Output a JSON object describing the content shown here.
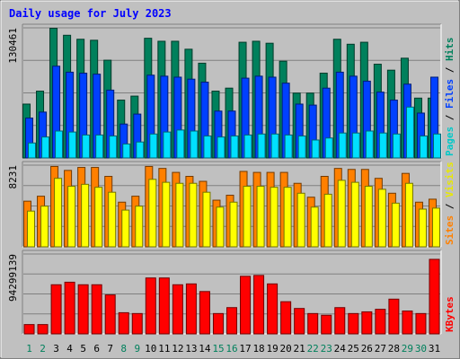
{
  "chart_data": {
    "type": "bar",
    "title": "Daily usage for July 2023",
    "days": [
      "1",
      "2",
      "3",
      "4",
      "5",
      "6",
      "7",
      "8",
      "9",
      "10",
      "11",
      "12",
      "13",
      "14",
      "15",
      "16",
      "17",
      "18",
      "19",
      "20",
      "21",
      "22",
      "23",
      "24",
      "25",
      "26",
      "27",
      "28",
      "29",
      "30",
      "31"
    ],
    "weekend_days": [
      "1",
      "2",
      "8",
      "9",
      "15",
      "16",
      "22",
      "23",
      "29",
      "30"
    ],
    "panels": [
      {
        "name": "hits-files-pages",
        "ymax_label": "130461",
        "ymax": 130461,
        "series": [
          {
            "name": "Hits",
            "color": "#00805c",
            "values": [
              54000,
              67000,
              130000,
              123000,
              119000,
              118000,
              98000,
              58000,
              62000,
              120000,
              117000,
              117000,
              109000,
              95000,
              67000,
              70000,
              116000,
              117000,
              115000,
              97000,
              65000,
              65000,
              85000,
              119000,
              114000,
              116000,
              94000,
              88000,
              100000,
              60000,
              60000
            ]
          },
          {
            "name": "Files",
            "color": "#0040ff",
            "values": [
              40000,
              46000,
              92000,
              86000,
              85000,
              84000,
              68000,
              34000,
              44000,
              83000,
              82000,
              81000,
              79000,
              76000,
              47000,
              47000,
              80000,
              82000,
              81000,
              75000,
              54000,
              53000,
              70000,
              86000,
              82000,
              77000,
              66000,
              58000,
              74000,
              45000,
              81000
            ]
          },
          {
            "name": "Pages",
            "color": "#00e0ff",
            "values": [
              15000,
              21000,
              27000,
              26000,
              23000,
              23000,
              22000,
              14000,
              16000,
              24000,
              26000,
              28000,
              27000,
              22000,
              21000,
              22000,
              23000,
              24000,
              24000,
              23000,
              22000,
              18000,
              20000,
              25000,
              25000,
              27000,
              25000,
              24000,
              51000,
              22000,
              24000
            ]
          }
        ],
        "side_labels": [
          {
            "text": "Pages",
            "color": "#00c8c8"
          },
          {
            "text": "/",
            "color": "#000000"
          },
          {
            "text": "Files",
            "color": "#0040ff"
          },
          {
            "text": "/",
            "color": "#000000"
          },
          {
            "text": "Hits",
            "color": "#00805c"
          }
        ]
      },
      {
        "name": "visits-sites",
        "ymax_label": "8231",
        "ymax": 8231,
        "series": [
          {
            "name": "Sites",
            "color": "#ff8000",
            "values": [
              4600,
              5100,
              8100,
              7700,
              8000,
              8000,
              7100,
              4500,
              5100,
              8100,
              7900,
              7500,
              7100,
              6600,
              4700,
              5200,
              7600,
              7500,
              7500,
              7500,
              6400,
              5000,
              7100,
              7900,
              7800,
              7800,
              6900,
              5400,
              7400,
              4500,
              4800
            ]
          },
          {
            "name": "Visits",
            "color": "#ffff00",
            "values": [
              3600,
              4100,
              6900,
              6100,
              6300,
              6000,
              5500,
              3700,
              4100,
              6800,
              6500,
              6400,
              6400,
              5500,
              4000,
              4500,
              6100,
              6100,
              6000,
              6000,
              5400,
              4000,
              5300,
              6700,
              6500,
              6100,
              5800,
              4400,
              6400,
              3800,
              3900
            ]
          }
        ],
        "side_labels": [
          {
            "text": "Sites",
            "color": "#ff8000"
          },
          {
            "text": "/",
            "color": "#000000"
          },
          {
            "text": "Visits",
            "color": "#e8e800"
          }
        ]
      },
      {
        "name": "kbytes",
        "ymax_label": "94299139",
        "ymax": 94299139,
        "series": [
          {
            "name": "KBytes",
            "color": "#ff0000",
            "values": [
              11000000,
              11000000,
              58000000,
              61000000,
              58000000,
              58000000,
              46000000,
              25000000,
              24000000,
              66000000,
              66000000,
              58000000,
              59000000,
              50000000,
              24000000,
              31000000,
              68000000,
              69000000,
              59000000,
              38000000,
              30000000,
              24000000,
              22000000,
              31000000,
              24000000,
              26000000,
              29000000,
              41000000,
              27000000,
              24000000,
              88000000
            ]
          }
        ],
        "side_labels": [
          {
            "text": "KBytes",
            "color": "#ff0000"
          }
        ]
      }
    ]
  }
}
